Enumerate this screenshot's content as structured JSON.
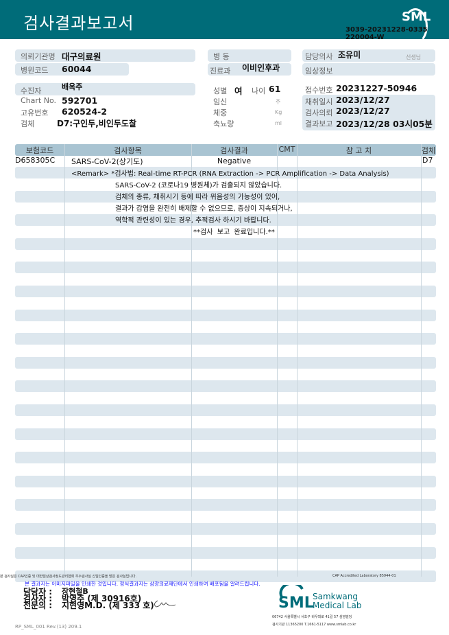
{
  "header": {
    "title": "검사결과보고서",
    "logo": "SML",
    "doc_number": "3039-20231228-0335",
    "doc_suffix": "220004-W"
  },
  "info": {
    "institution_label": "의뢰기관명",
    "institution": "대구의료원",
    "hospital_code_label": "병원코드",
    "hospital_code": "60044",
    "patient_label": "수진자",
    "patient": "배옥주",
    "chart_label": "Chart No.",
    "chart": "592701",
    "id_label": "고유번호",
    "id": "620524-2",
    "specimen_label": "검체",
    "specimen": "D7:구인두,비인두도찰",
    "ward_label": "병 동",
    "dept_label": "진료과",
    "dept": "이비인후과",
    "sex_label": "성별",
    "sex": "여",
    "age_label": "나이",
    "age": "61",
    "pregnancy_label": "임신",
    "pregnancy_unit": "주",
    "weight_label": "체중",
    "weight_unit": "Kg",
    "urine_label": "축뇨량",
    "urine_unit": "ml",
    "doctor_label": "담당의사",
    "doctor": "조유미",
    "doctor_suffix": "선생님",
    "clinical_label": "임상정보",
    "receipt_label": "접수번호",
    "receipt": "20231227-50946",
    "collected_label": "채취일시",
    "collected": "2023/12/27",
    "requested_label": "검사의뢰",
    "requested": "2023/12/27",
    "reported_label": "결과보고",
    "reported": "2023/12/28 03시05분"
  },
  "table": {
    "headers": [
      "보험코드",
      "검사항목",
      "검사결과",
      "CMT",
      "참 고 치",
      "검체"
    ],
    "rows": [
      {
        "code": "D658305C",
        "item": "SARS-CoV-2(상기도)",
        "result": "Negative",
        "cmt": "",
        "ref": "",
        "specimen": "D7"
      }
    ],
    "remarks": [
      "<Remark> *검사법: Real-time RT-PCR (RNA Extraction -> PCR Amplification -> Data Analysis)",
      "SARS-CoV-2 (코로나19 병원체)가 검출되지 않았습니다.",
      "검체의 종류, 채취시기 등에 따라 위음성의 가능성이 있어,",
      "결과가 감염을 완전히 배제할 수 없으므로, 증상이 지속되거나,",
      "역학적 관련성이 있는 경우, 추적검사 하시기 바랍니다.",
      "**검사  보고  완료입니다.**"
    ]
  },
  "footer": {
    "cert_note": "본 검사실은 CAP인증 및 대한임상검사정도관리협회 우수검사실 신임인증을 받은 검사실입니다.",
    "cap": "CAP Accredited Laboratory 85944-01",
    "notice": "본 결과지는 이미지파일을 인쇄한 것입니다. 정식결과지는 삼광의료재단에서 인쇄하여 배포됨을 알려드립니다.",
    "manager_label": "담당자 :",
    "manager": "장현철B",
    "tester_label": "검사자 :",
    "tester": "박영주 (제 30916호)",
    "specialist_label": "전문의 :",
    "specialist": "지현영M.D. (제 333 호)",
    "lab_logo": "SML",
    "lab_name1": "Samkwang",
    "lab_name2": "Medical Lab",
    "address": "06742 서울특별시 서초구 바우뫼로 41길 57 삼광빌딩",
    "contact": "검사기관 11365200 T.1661-5117 www.smlab.co.kr",
    "form_code": "RP_SML_001 Rev.(13) 209.1"
  },
  "colors": {
    "brand": "#006c79",
    "stripe": "#dde7ee",
    "table_header": "#a9c4d2",
    "notice": "#1a1aff"
  }
}
